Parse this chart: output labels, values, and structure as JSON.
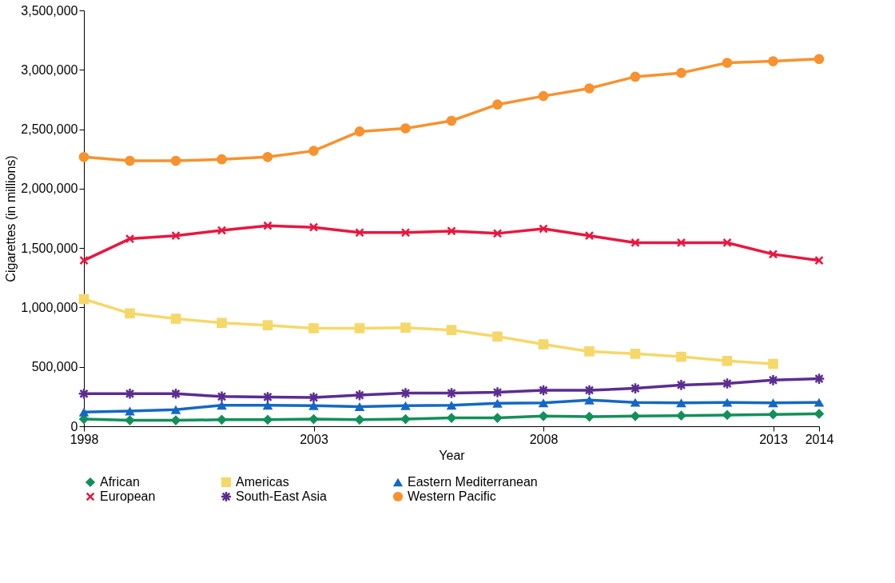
{
  "chart_data": {
    "type": "line",
    "xlabel": "Year",
    "ylabel": "Cigarettes (in millions)",
    "x": [
      1998,
      1999,
      2000,
      2001,
      2002,
      2003,
      2004,
      2005,
      2006,
      2007,
      2008,
      2009,
      2010,
      2011,
      2012,
      2013,
      2014
    ],
    "xlim": [
      1998,
      2014
    ],
    "xticks": [
      1998,
      2003,
      2008,
      2013,
      2014
    ],
    "ylim": [
      0,
      3500000
    ],
    "yticks": [
      0,
      {
        "value": 500000,
        "label": "500,000"
      },
      {
        "value": 1000000,
        "label": "1,000,000"
      },
      {
        "value": 1500000,
        "label": "1,500,000"
      },
      {
        "value": 2000000,
        "label": "2,000,000"
      },
      {
        "value": 2500000,
        "label": "2,500,000"
      },
      {
        "value": 3000000,
        "label": "3,000,000"
      },
      {
        "value": 3500000,
        "label": "3,500,000"
      }
    ],
    "grid": false,
    "legend": "bottom",
    "line_style": "solid",
    "series": [
      {
        "name": "African",
        "color": "#13905a",
        "marker": "diamond",
        "values": [
          60000,
          50000,
          50000,
          55000,
          55000,
          60000,
          55000,
          60000,
          70000,
          70000,
          85000,
          80000,
          85000,
          90000,
          95000,
          100000,
          105000
        ]
      },
      {
        "name": "Americas",
        "color": "#f5d86a",
        "marker": "square",
        "values": [
          1070000,
          950000,
          905000,
          870000,
          850000,
          825000,
          825000,
          830000,
          810000,
          755000,
          690000,
          630000,
          610000,
          585000,
          550000,
          525000,
          null
        ]
      },
      {
        "name": "Eastern Mediterranean",
        "color": "#1468c4",
        "marker": "triangle",
        "values": [
          120000,
          128000,
          140000,
          177000,
          177000,
          173000,
          165000,
          173000,
          177000,
          193000,
          197000,
          221000,
          201000,
          197000,
          201000,
          197000,
          201000
        ]
      },
      {
        "name": "European",
        "color": "#e8173f",
        "marker": "cross",
        "values": [
          1396000,
          1578000,
          1604000,
          1649000,
          1688000,
          1675000,
          1630000,
          1630000,
          1643000,
          1623000,
          1662000,
          1604000,
          1545000,
          1545000,
          1545000,
          1448000,
          1396000
        ]
      },
      {
        "name": "South-East Asia",
        "color": "#5b2d91",
        "marker": "star",
        "values": [
          274000,
          274000,
          274000,
          250000,
          246000,
          242000,
          262000,
          279000,
          279000,
          286000,
          303000,
          303000,
          319000,
          347000,
          360000,
          388000,
          400000
        ]
      },
      {
        "name": "Western Pacific",
        "color": "#f7922e",
        "marker": "circle",
        "values": [
          2266000,
          2234000,
          2234000,
          2247000,
          2266000,
          2318000,
          2481000,
          2507000,
          2571000,
          2708000,
          2779000,
          2844000,
          2942000,
          2974000,
          3059000,
          3072000,
          3091000
        ]
      }
    ]
  }
}
